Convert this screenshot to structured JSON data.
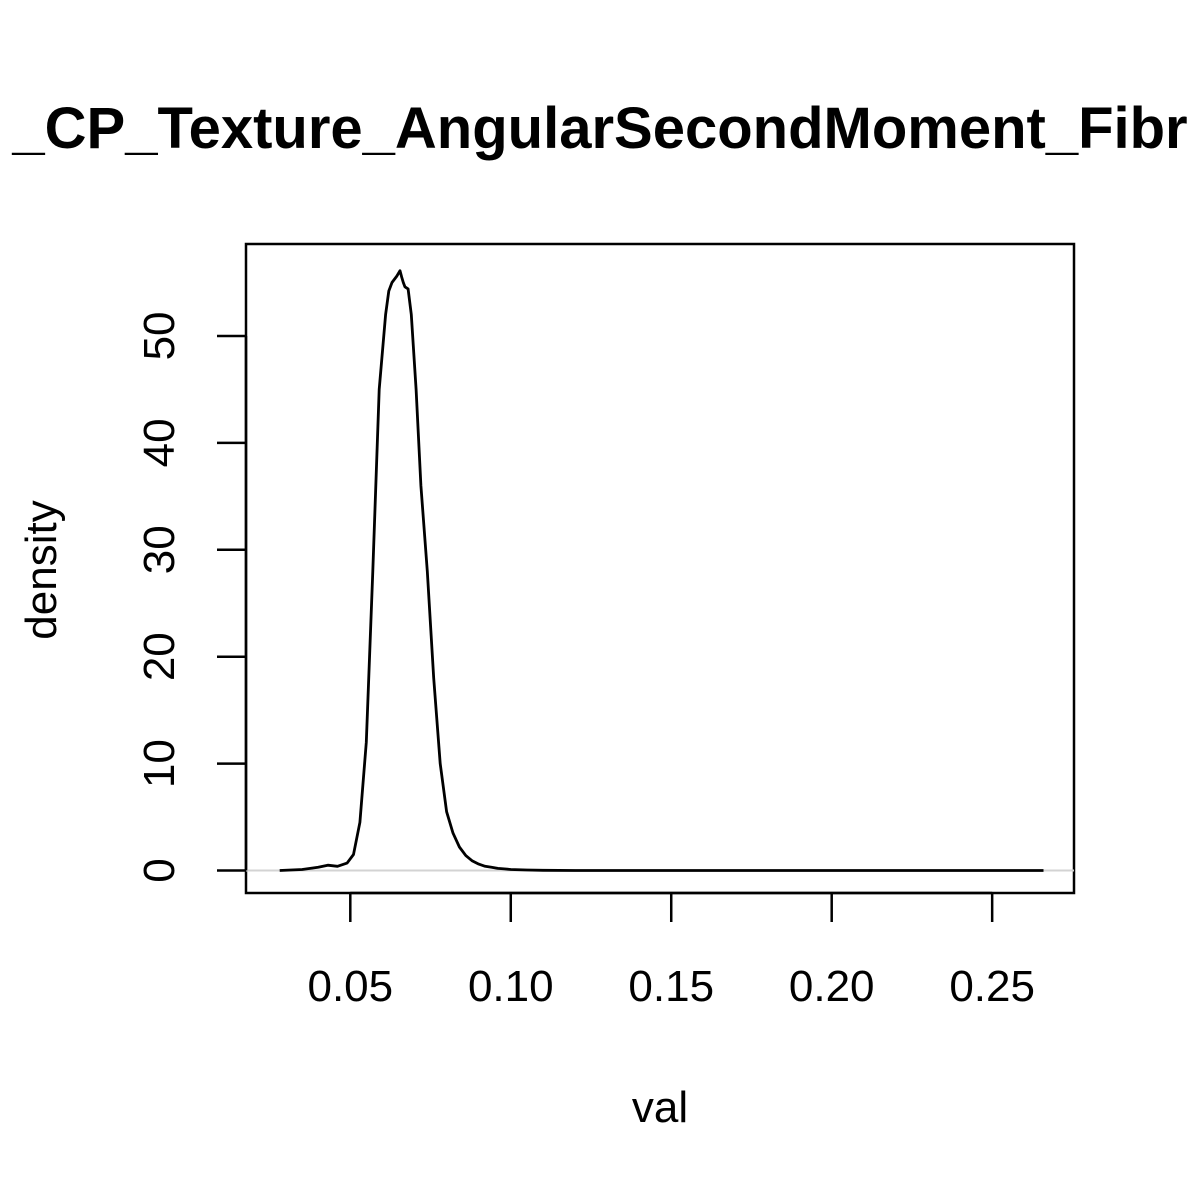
{
  "chart_data": {
    "type": "line",
    "title": "_CP_Texture_AngularSecondMoment_Fibr",
    "xlabel": "val",
    "ylabel": "density",
    "xlim": [
      0.0175,
      0.2755
    ],
    "ylim": [
      -2.1,
      58.6
    ],
    "x_ticks": [
      0.05,
      0.1,
      0.15,
      0.2,
      0.25
    ],
    "x_tick_labels": [
      "0.05",
      "0.10",
      "0.15",
      "0.20",
      "0.25"
    ],
    "y_ticks": [
      0,
      10,
      20,
      30,
      40,
      50
    ],
    "y_tick_labels": [
      "0",
      "10",
      "20",
      "30",
      "40",
      "50"
    ],
    "grid": false,
    "baseline": 0,
    "series": [
      {
        "color": "#000000",
        "x": [
          0.028,
          0.035,
          0.04,
          0.043,
          0.046,
          0.049,
          0.051,
          0.053,
          0.055,
          0.057,
          0.059,
          0.061,
          0.062,
          0.063,
          0.0645,
          0.0655,
          0.066,
          0.0665,
          0.067,
          0.068,
          0.069,
          0.0705,
          0.072,
          0.074,
          0.076,
          0.078,
          0.08,
          0.082,
          0.084,
          0.086,
          0.088,
          0.09,
          0.092,
          0.094,
          0.096,
          0.098,
          0.1,
          0.105,
          0.11,
          0.12,
          0.15,
          0.2,
          0.266
        ],
        "values": [
          0,
          0.1,
          0.3,
          0.5,
          0.4,
          0.7,
          1.5,
          4.5,
          12,
          28,
          45,
          52,
          54.2,
          55,
          55.6,
          56.1,
          55.5,
          55.0,
          54.6,
          54.4,
          52,
          45,
          36,
          28,
          18,
          10,
          5.5,
          3.5,
          2.2,
          1.4,
          0.9,
          0.6,
          0.4,
          0.3,
          0.2,
          0.15,
          0.1,
          0.05,
          0.02,
          0,
          0,
          0,
          0
        ]
      }
    ]
  }
}
